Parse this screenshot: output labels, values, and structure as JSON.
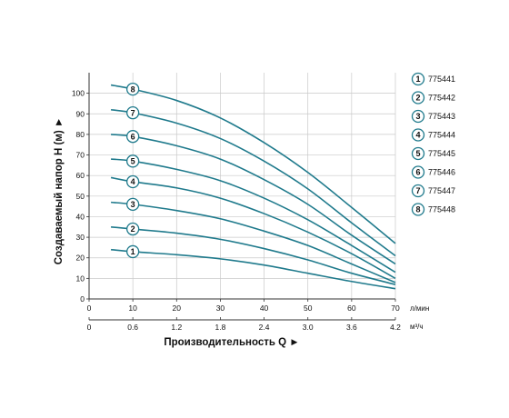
{
  "chart_data": {
    "type": "line",
    "title": "",
    "ylabel": "Создаваемый напор H (м) ►",
    "xlabel": "Производительность Q ►",
    "x_unit": "л/мин",
    "x2_unit": "м³/ч",
    "xlim": [
      0,
      70
    ],
    "ylim": [
      0,
      110
    ],
    "x_ticks": [
      "0",
      "10",
      "20",
      "30",
      "40",
      "50",
      "60",
      "70"
    ],
    "x2_ticks": [
      "0",
      "0.6",
      "1.2",
      "1.8",
      "2.4",
      "3.0",
      "3.6",
      "4.2"
    ],
    "y_ticks": [
      "0",
      "10",
      "20",
      "30",
      "40",
      "50",
      "60",
      "70",
      "80",
      "90",
      "100"
    ],
    "grid": true,
    "legend_position": "right",
    "series_color": "#1f7a8c",
    "series": [
      {
        "name": "775441",
        "marker": "1",
        "x": [
          5,
          10,
          20,
          30,
          40,
          50,
          60,
          70
        ],
        "values": [
          24,
          23,
          21.5,
          19.5,
          16.5,
          12.5,
          8.5,
          5
        ]
      },
      {
        "name": "775442",
        "marker": "2",
        "x": [
          5,
          10,
          20,
          30,
          40,
          50,
          60,
          70
        ],
        "values": [
          35,
          34,
          32,
          29,
          24.5,
          19,
          12.5,
          7
        ]
      },
      {
        "name": "775443",
        "marker": "3",
        "x": [
          5,
          10,
          20,
          30,
          40,
          50,
          60,
          70
        ],
        "values": [
          47,
          46,
          43,
          39,
          33,
          26,
          17,
          8
        ]
      },
      {
        "name": "775444",
        "marker": "4",
        "x": [
          5,
          10,
          20,
          30,
          40,
          50,
          60,
          70
        ],
        "values": [
          59,
          57,
          54,
          49,
          41.5,
          32.5,
          22,
          10
        ]
      },
      {
        "name": "775445",
        "marker": "5",
        "x": [
          5,
          10,
          20,
          30,
          40,
          50,
          60,
          70
        ],
        "values": [
          68,
          67,
          63,
          57.5,
          49,
          38.5,
          26,
          13
        ]
      },
      {
        "name": "775446",
        "marker": "6",
        "x": [
          5,
          10,
          20,
          30,
          40,
          50,
          60,
          70
        ],
        "values": [
          80,
          79,
          74.5,
          68,
          58,
          46,
          31,
          17
        ]
      },
      {
        "name": "775447",
        "marker": "7",
        "x": [
          5,
          10,
          20,
          30,
          40,
          50,
          60,
          70
        ],
        "values": [
          92,
          90.5,
          85.5,
          78,
          67,
          53.5,
          37,
          21
        ]
      },
      {
        "name": "775448",
        "marker": "8",
        "x": [
          5,
          10,
          20,
          30,
          40,
          50,
          60,
          70
        ],
        "values": [
          104,
          102,
          96.5,
          88,
          76,
          61.5,
          44.5,
          27
        ]
      }
    ],
    "marker_x": 10
  }
}
